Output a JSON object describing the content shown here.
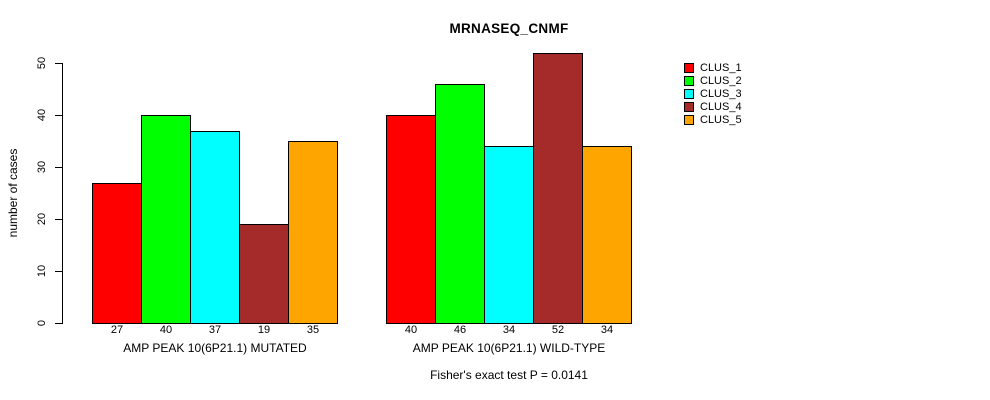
{
  "title": "MRNASEQ_CNMF",
  "chart_data": {
    "type": "bar",
    "title": "MRNASEQ_CNMF",
    "xlabel": "",
    "ylabel": "number of cases",
    "ylim": [
      0,
      50
    ],
    "yticks": [
      0,
      10,
      20,
      30,
      40,
      50
    ],
    "grid": false,
    "legend_position": "right-outside",
    "bar_value_labels": true,
    "categories": [
      "AMP PEAK 10(6P21.1) MUTATED",
      "AMP PEAK 10(6P21.1) WILD-TYPE"
    ],
    "series": [
      {
        "name": "CLUS_1",
        "color": "#FF0000",
        "values": [
          27,
          40
        ]
      },
      {
        "name": "CLUS_2",
        "color": "#00FF00",
        "values": [
          40,
          46
        ]
      },
      {
        "name": "CLUS_3",
        "color": "#00FFFF",
        "values": [
          37,
          34
        ]
      },
      {
        "name": "CLUS_4",
        "color": "#A52A2A",
        "values": [
          19,
          52
        ]
      },
      {
        "name": "CLUS_5",
        "color": "#FFA500",
        "values": [
          35,
          34
        ]
      }
    ],
    "annotation": "Fisher's exact test P = 0.0141"
  },
  "legend": {
    "items": [
      {
        "label": "CLUS_1",
        "color": "#FF0000"
      },
      {
        "label": "CLUS_2",
        "color": "#00FF00"
      },
      {
        "label": "CLUS_3",
        "color": "#00FFFF"
      },
      {
        "label": "CLUS_4",
        "color": "#A52A2A"
      },
      {
        "label": "CLUS_5",
        "color": "#FFA500"
      }
    ]
  }
}
